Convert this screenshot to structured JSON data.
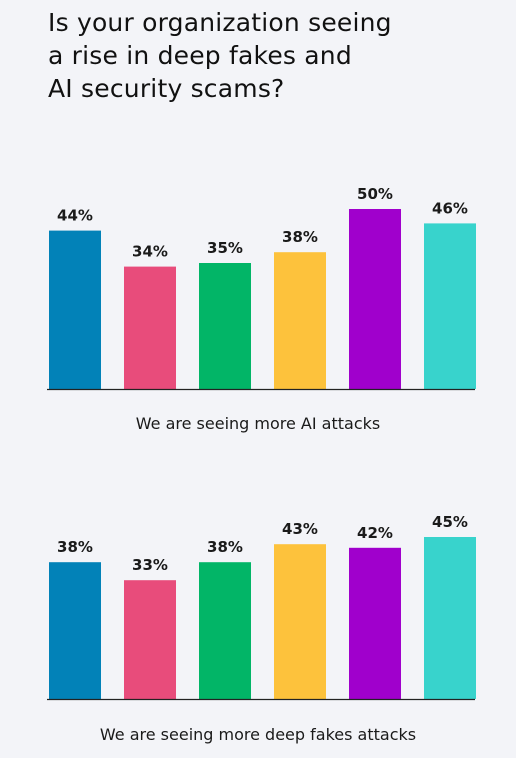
{
  "title_lines": [
    "Is your organization seeing",
    "a rise in deep fakes and",
    "AI security scams?"
  ],
  "colors": [
    "#0282b8",
    "#e84c7b",
    "#02b567",
    "#fdc23c",
    "#a000cc",
    "#38d3cc"
  ],
  "chart_data": [
    {
      "type": "bar",
      "title": "",
      "caption": "We are seeing more AI attacks",
      "values": [
        44,
        34,
        35,
        38,
        50,
        46
      ],
      "labels": [
        "44%",
        "34%",
        "35%",
        "38%",
        "50%",
        "46%"
      ],
      "ylim": [
        0,
        100
      ],
      "grid": false
    },
    {
      "type": "bar",
      "title": "",
      "caption": "We are seeing more deep fakes attacks",
      "values": [
        38,
        33,
        38,
        43,
        42,
        45
      ],
      "labels": [
        "38%",
        "33%",
        "38%",
        "43%",
        "42%",
        "45%"
      ],
      "ylim": [
        0,
        100
      ],
      "grid": false
    }
  ]
}
